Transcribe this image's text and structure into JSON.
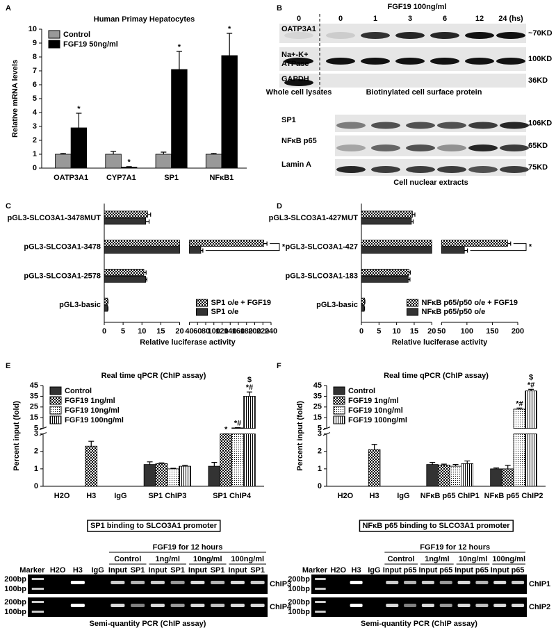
{
  "panel_labels": [
    "A",
    "B",
    "C",
    "D",
    "E",
    "F"
  ],
  "chart_data": [
    {
      "type": "bar",
      "title": "Human Primay Hepatocytes",
      "y_label": "Relative mRNA levels",
      "categories": [
        "OATP3A1",
        "CYP7A1",
        "SP1",
        "NFκB1"
      ],
      "series": [
        {
          "name": "Control",
          "color": "#999999",
          "values": [
            1.0,
            1.0,
            1.0,
            1.0
          ],
          "errors": [
            0.06,
            0.2,
            0.15,
            0.06
          ]
        },
        {
          "name": "FGF19 50ng/ml",
          "color": "#000000",
          "values": [
            2.9,
            0.07,
            7.1,
            8.1
          ],
          "errors": [
            1.05,
            0.04,
            1.3,
            1.6
          ],
          "significance": [
            "*",
            "*",
            "*",
            "*"
          ]
        }
      ],
      "ylim": [
        0,
        10
      ],
      "yticks": [
        0,
        1,
        2,
        3,
        4,
        5,
        6,
        7,
        8,
        9,
        10
      ],
      "legend": "top-left"
    },
    {
      "type": "hbar",
      "x_label": "Relative luciferase activity",
      "categories": [
        "pGL3-SLCO3A1-3478MUT",
        "pGL3-SLCO3A1-3478",
        "pGL3-SLCO3A1-2578",
        "pGL3-basic"
      ],
      "series": [
        {
          "name": "SP1 o/e + FGF19",
          "color": "#000000",
          "pattern": "checker",
          "values": [
            11.5,
            222,
            10.5,
            0.9
          ],
          "errors": [
            0.8,
            8,
            0.6,
            0.1
          ]
        },
        {
          "name": "SP1 o/e",
          "color": "#333333",
          "values": [
            11,
            68,
            11,
            0.9
          ],
          "errors": [
            0.9,
            5,
            0.3,
            0.1
          ]
        }
      ],
      "significance": [
        null,
        "*",
        null,
        null
      ],
      "xlim": [
        0,
        240
      ],
      "xbreak": [
        20,
        40
      ],
      "xticks": [
        0,
        5,
        10,
        15,
        20,
        40,
        60,
        80,
        100,
        120,
        140,
        160,
        180,
        200,
        220,
        240
      ],
      "legend": "bottom-right"
    },
    {
      "type": "hbar",
      "x_label": "Relative luciferase activity",
      "categories": [
        "pGL3-SLCO3A1-427MUT",
        "pGL3-SLCO3A1-427",
        "pGL3-SLCO3A1-183",
        "pGL3-basic"
      ],
      "series": [
        {
          "name": "NFκB p65/p50 o/e + FGF19",
          "color": "#000000",
          "pattern": "checker",
          "values": [
            14.5,
            180,
            13.5,
            0.9
          ],
          "errors": [
            0.7,
            6,
            0.4,
            0.1
          ]
        },
        {
          "name": "NFκB p65/p50 o/e",
          "color": "#333333",
          "values": [
            14.2,
            95,
            13.3,
            0.8
          ],
          "errors": [
            0.5,
            6,
            0.5,
            0.1
          ]
        }
      ],
      "significance": [
        null,
        "*",
        null,
        null
      ],
      "xlim": [
        0,
        200
      ],
      "xbreak": [
        20,
        50
      ],
      "xticks": [
        0,
        5,
        10,
        15,
        20,
        50,
        100,
        150,
        200
      ],
      "legend": "bottom-right"
    },
    {
      "type": "bar",
      "title": "Real time qPCR (ChIP assay)",
      "y_label": "Percent input (fold)",
      "caption": "SP1 binding to SLCO3A1 promoter",
      "categories": [
        "H2O",
        "H3",
        "IgG",
        "SP1 ChIP3",
        "SP1 ChIP4"
      ],
      "series": [
        {
          "name": "Control",
          "color": "#333333",
          "values": [
            null,
            null,
            null,
            1.25,
            1.15
          ],
          "errors": [
            null,
            null,
            null,
            0.15,
            0.22
          ]
        },
        {
          "name": "FGF19 1ng/ml",
          "color": "#000000",
          "pattern": "checker",
          "values": [
            null,
            2.3,
            null,
            1.3,
            3.0
          ],
          "errors": [
            null,
            0.28,
            null,
            0.04,
            0.04
          ],
          "significance": [
            null,
            null,
            null,
            null,
            "*"
          ]
        },
        {
          "name": "FGF19 10ng/ml",
          "color": "#000000",
          "pattern": "dots",
          "values": [
            null,
            null,
            null,
            1.0,
            5.5
          ],
          "errors": [
            null,
            null,
            null,
            0.03,
            0.3
          ],
          "significance": [
            null,
            null,
            null,
            null,
            "*#"
          ]
        },
        {
          "name": "FGF19 100ng/ml",
          "color": "#000000",
          "pattern": "vstripes",
          "values": [
            null,
            null,
            null,
            1.15,
            35
          ],
          "errors": [
            null,
            null,
            null,
            0.05,
            4
          ],
          "significance": [
            null,
            null,
            null,
            null,
            [
              "$",
              "*#"
            ]
          ]
        }
      ],
      "ylim": [
        0,
        45
      ],
      "ybreak": [
        3,
        5
      ],
      "yticks": [
        0,
        1,
        2,
        3,
        5,
        15,
        25,
        35,
        45
      ],
      "legend": "top-left"
    },
    {
      "type": "bar",
      "title": "Real time qPCR (ChIP assay)",
      "y_label": "Percent input (fold)",
      "caption": "NFκB p65 binding to SLCO3A1 promoter",
      "categories": [
        "H2O",
        "H3",
        "IgG",
        "NFκB p65 ChIP1",
        "NFκB p65 ChIP2"
      ],
      "series": [
        {
          "name": "Control",
          "color": "#333333",
          "values": [
            null,
            null,
            null,
            1.25,
            1.0
          ],
          "errors": [
            null,
            null,
            null,
            0.12,
            0.05
          ]
        },
        {
          "name": "FGF19 1ng/ml",
          "color": "#000000",
          "pattern": "checker",
          "values": [
            null,
            2.1,
            null,
            1.22,
            1.0
          ],
          "errors": [
            null,
            0.3,
            null,
            0.05,
            0.2
          ]
        },
        {
          "name": "FGF19 10ng/ml",
          "color": "#000000",
          "pattern": "dots",
          "values": [
            null,
            null,
            null,
            1.15,
            23
          ],
          "errors": [
            null,
            null,
            null,
            0.1,
            1
          ],
          "significance": [
            null,
            null,
            null,
            null,
            "*#"
          ]
        },
        {
          "name": "FGF19 100ng/ml",
          "color": "#000000",
          "pattern": "vstripes",
          "values": [
            null,
            null,
            null,
            1.3,
            40
          ],
          "errors": [
            null,
            null,
            null,
            0.15,
            1.5
          ],
          "significance": [
            null,
            null,
            null,
            null,
            [
              "$",
              "*#"
            ]
          ]
        }
      ],
      "ylim": [
        0,
        45
      ],
      "ybreak": [
        3,
        5
      ],
      "yticks": [
        0,
        1,
        2,
        3,
        5,
        15,
        25,
        35,
        45
      ],
      "legend": "top-left"
    }
  ],
  "blot": {
    "title": "FGF19 100ng/ml",
    "lanes": [
      "0",
      "0",
      "1",
      "3",
      "6",
      "12",
      "24 (hs)"
    ],
    "surface_rows": [
      {
        "label": "OATP3A1",
        "size": "~70KD"
      },
      {
        "label": [
          "Na+-K+",
          "ATPase"
        ],
        "size": "100KD"
      },
      {
        "label": "GAPDH",
        "size": "36KD"
      }
    ],
    "surface_captions": [
      "Whole cell lysates",
      "Biotinylated cell surface protein"
    ],
    "nuclear_rows": [
      {
        "label": "SP1",
        "size": "106KD"
      },
      {
        "label": "NFκB p65",
        "size": "65KD"
      },
      {
        "label": "Lamin A",
        "size": "75KD"
      }
    ],
    "nuclear_caption": "Cell nuclear extracts"
  },
  "gels": [
    {
      "header": "FGF19 for 12 hours",
      "groups": [
        "Control",
        "1ng/ml",
        "10ng/ml",
        "100ng/ml"
      ],
      "lanes": [
        "Marker",
        "H2O",
        "H3",
        "IgG",
        "Input",
        "SP1",
        "Input",
        "SP1",
        "Input",
        "SP1",
        "Input",
        "SP1"
      ],
      "markers": [
        "200bp",
        "100bp"
      ],
      "rows": [
        "ChIP3",
        "ChIP4"
      ],
      "caption": "Semi-quantity PCR (ChIP assay)"
    },
    {
      "header": "FGF19 for 12 hours",
      "groups": [
        "Control",
        "1ng/ml",
        "10ng/ml",
        "100ng/ml"
      ],
      "lanes": [
        "Marker",
        "H2O",
        "H3",
        "IgG",
        "Input",
        "p65",
        "Input",
        "p65",
        "Input",
        "p65",
        "Input",
        "p65"
      ],
      "markers": [
        "200bp",
        "100bp"
      ],
      "rows": [
        "ChIP1",
        "ChIP2"
      ],
      "caption": "Semi-quantity PCR (ChIP assay)"
    }
  ]
}
